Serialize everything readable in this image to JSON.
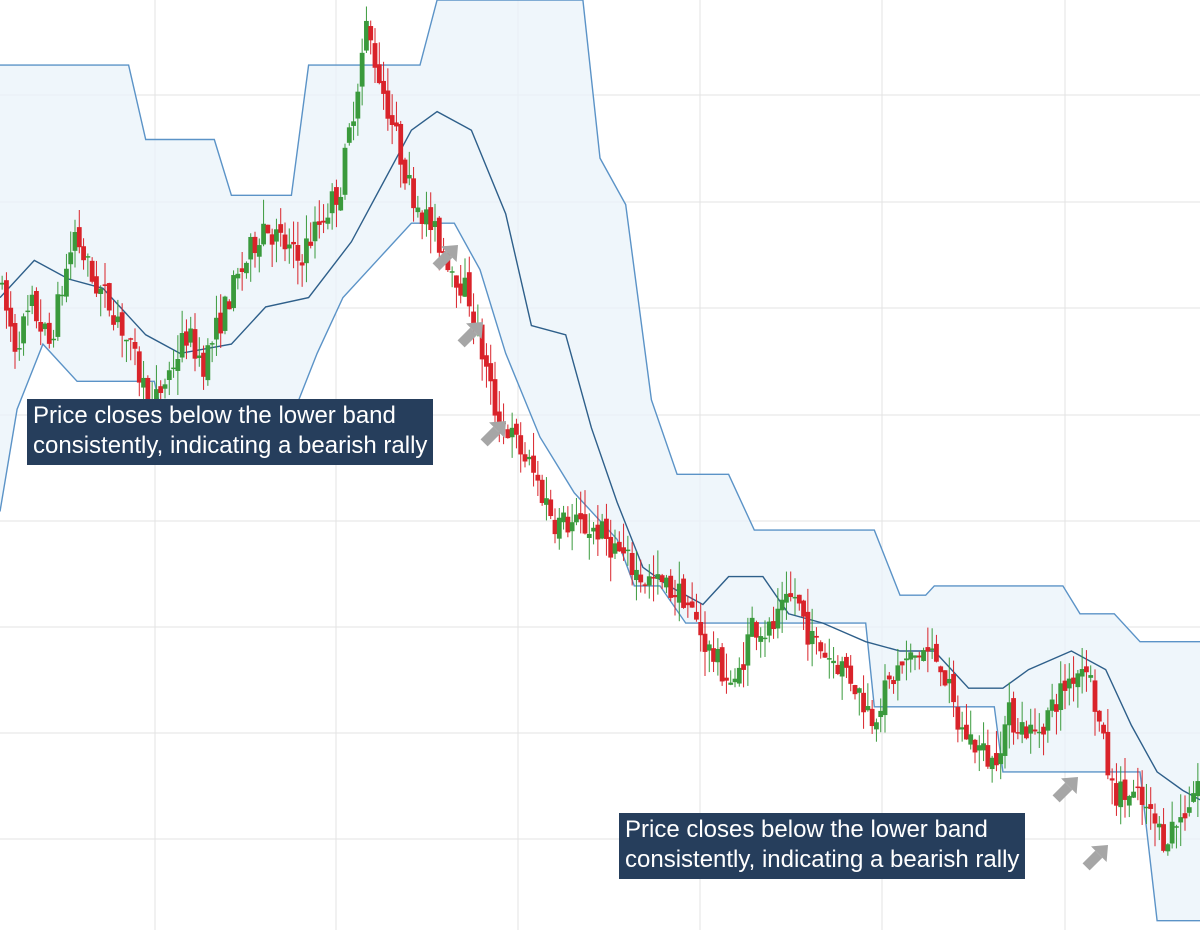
{
  "chart_data": {
    "type": "candlestick",
    "title": "",
    "xlabel": "",
    "ylabel": "",
    "grid": true,
    "legend": "none",
    "colors": {
      "bull": "#3a9a3c",
      "bear": "#d9232a",
      "band_line": "#5b93c7",
      "band_fill": "#eaf3fa",
      "middle_line": "#2e5f8a",
      "grid": "#e3e3e3",
      "callout_bg": "#263e5c",
      "arrow": "#a6a6a6"
    },
    "price_range": [
      0,
      100
    ],
    "price_path": [
      [
        0,
        70
      ],
      [
        4,
        63
      ],
      [
        8,
        67
      ],
      [
        12,
        63
      ],
      [
        18,
        75
      ],
      [
        22,
        70
      ],
      [
        28,
        66
      ],
      [
        36,
        56
      ],
      [
        44,
        64
      ],
      [
        48,
        61
      ],
      [
        54,
        68
      ],
      [
        62,
        76
      ],
      [
        70,
        72
      ],
      [
        80,
        80
      ],
      [
        86,
        97
      ],
      [
        96,
        80
      ],
      [
        104,
        73
      ],
      [
        110,
        68
      ],
      [
        116,
        56
      ],
      [
        124,
        50
      ],
      [
        130,
        44
      ],
      [
        140,
        43
      ],
      [
        150,
        38
      ],
      [
        160,
        36
      ],
      [
        166,
        30
      ],
      [
        172,
        26
      ],
      [
        176,
        33
      ],
      [
        180,
        32
      ],
      [
        186,
        36
      ],
      [
        190,
        31
      ],
      [
        198,
        28
      ],
      [
        204,
        23
      ],
      [
        210,
        28
      ],
      [
        216,
        30
      ],
      [
        220,
        29
      ],
      [
        224,
        22
      ],
      [
        232,
        18
      ],
      [
        236,
        23
      ],
      [
        242,
        21
      ],
      [
        250,
        27
      ],
      [
        254,
        29
      ],
      [
        260,
        15
      ],
      [
        266,
        14
      ],
      [
        272,
        10
      ],
      [
        276,
        12
      ],
      [
        280,
        16
      ]
    ],
    "bands": {
      "upper": [
        [
          0,
          93
        ],
        [
          30,
          93
        ],
        [
          34,
          85
        ],
        [
          50,
          85
        ],
        [
          54,
          79
        ],
        [
          68,
          79
        ],
        [
          72,
          93
        ],
        [
          98,
          93
        ],
        [
          102,
          100
        ],
        [
          136,
          100
        ],
        [
          140,
          83
        ],
        [
          146,
          78
        ],
        [
          152,
          57
        ],
        [
          158,
          49
        ],
        [
          170,
          49
        ],
        [
          176,
          43
        ],
        [
          204,
          43
        ],
        [
          210,
          36
        ],
        [
          216,
          36
        ],
        [
          218,
          37
        ],
        [
          248,
          37
        ],
        [
          252,
          34
        ],
        [
          260,
          34
        ],
        [
          266,
          31
        ],
        [
          280,
          31
        ]
      ],
      "middle": [
        [
          0,
          68
        ],
        [
          8,
          72
        ],
        [
          16,
          70
        ],
        [
          24,
          69
        ],
        [
          34,
          64
        ],
        [
          42,
          62
        ],
        [
          54,
          63
        ],
        [
          62,
          67
        ],
        [
          72,
          68
        ],
        [
          82,
          74
        ],
        [
          96,
          86
        ],
        [
          102,
          88
        ],
        [
          110,
          86
        ],
        [
          118,
          77
        ],
        [
          124,
          65
        ],
        [
          132,
          64
        ],
        [
          138,
          54
        ],
        [
          144,
          46
        ],
        [
          150,
          39
        ],
        [
          156,
          37
        ],
        [
          164,
          35
        ],
        [
          170,
          38
        ],
        [
          178,
          38
        ],
        [
          184,
          34
        ],
        [
          192,
          33
        ],
        [
          202,
          31
        ],
        [
          210,
          30
        ],
        [
          218,
          30
        ],
        [
          226,
          26
        ],
        [
          234,
          26
        ],
        [
          240,
          28
        ],
        [
          250,
          30
        ],
        [
          258,
          28
        ],
        [
          264,
          22
        ],
        [
          270,
          17
        ],
        [
          276,
          15
        ],
        [
          280,
          14
        ]
      ],
      "lower": [
        [
          0,
          45
        ],
        [
          4,
          56
        ],
        [
          10,
          63
        ],
        [
          18,
          59
        ],
        [
          36,
          59
        ],
        [
          38,
          55
        ],
        [
          68,
          55
        ],
        [
          74,
          62
        ],
        [
          80,
          68
        ],
        [
          90,
          73
        ],
        [
          96,
          76
        ],
        [
          106,
          76
        ],
        [
          112,
          71
        ],
        [
          118,
          62
        ],
        [
          126,
          53
        ],
        [
          134,
          47
        ],
        [
          144,
          42
        ],
        [
          148,
          37
        ],
        [
          154,
          37
        ],
        [
          160,
          33
        ],
        [
          202,
          33
        ],
        [
          204,
          24
        ],
        [
          232,
          24
        ],
        [
          234,
          17
        ],
        [
          266,
          17
        ],
        [
          270,
          1
        ],
        [
          280,
          1
        ]
      ]
    },
    "annotations": [
      {
        "line1": "Price closes below the lower band",
        "line2": "consistently, indicating a bearish rally"
      },
      {
        "line1": "Price closes below the lower band",
        "line2": "consistently, indicating a bearish rally"
      }
    ]
  }
}
